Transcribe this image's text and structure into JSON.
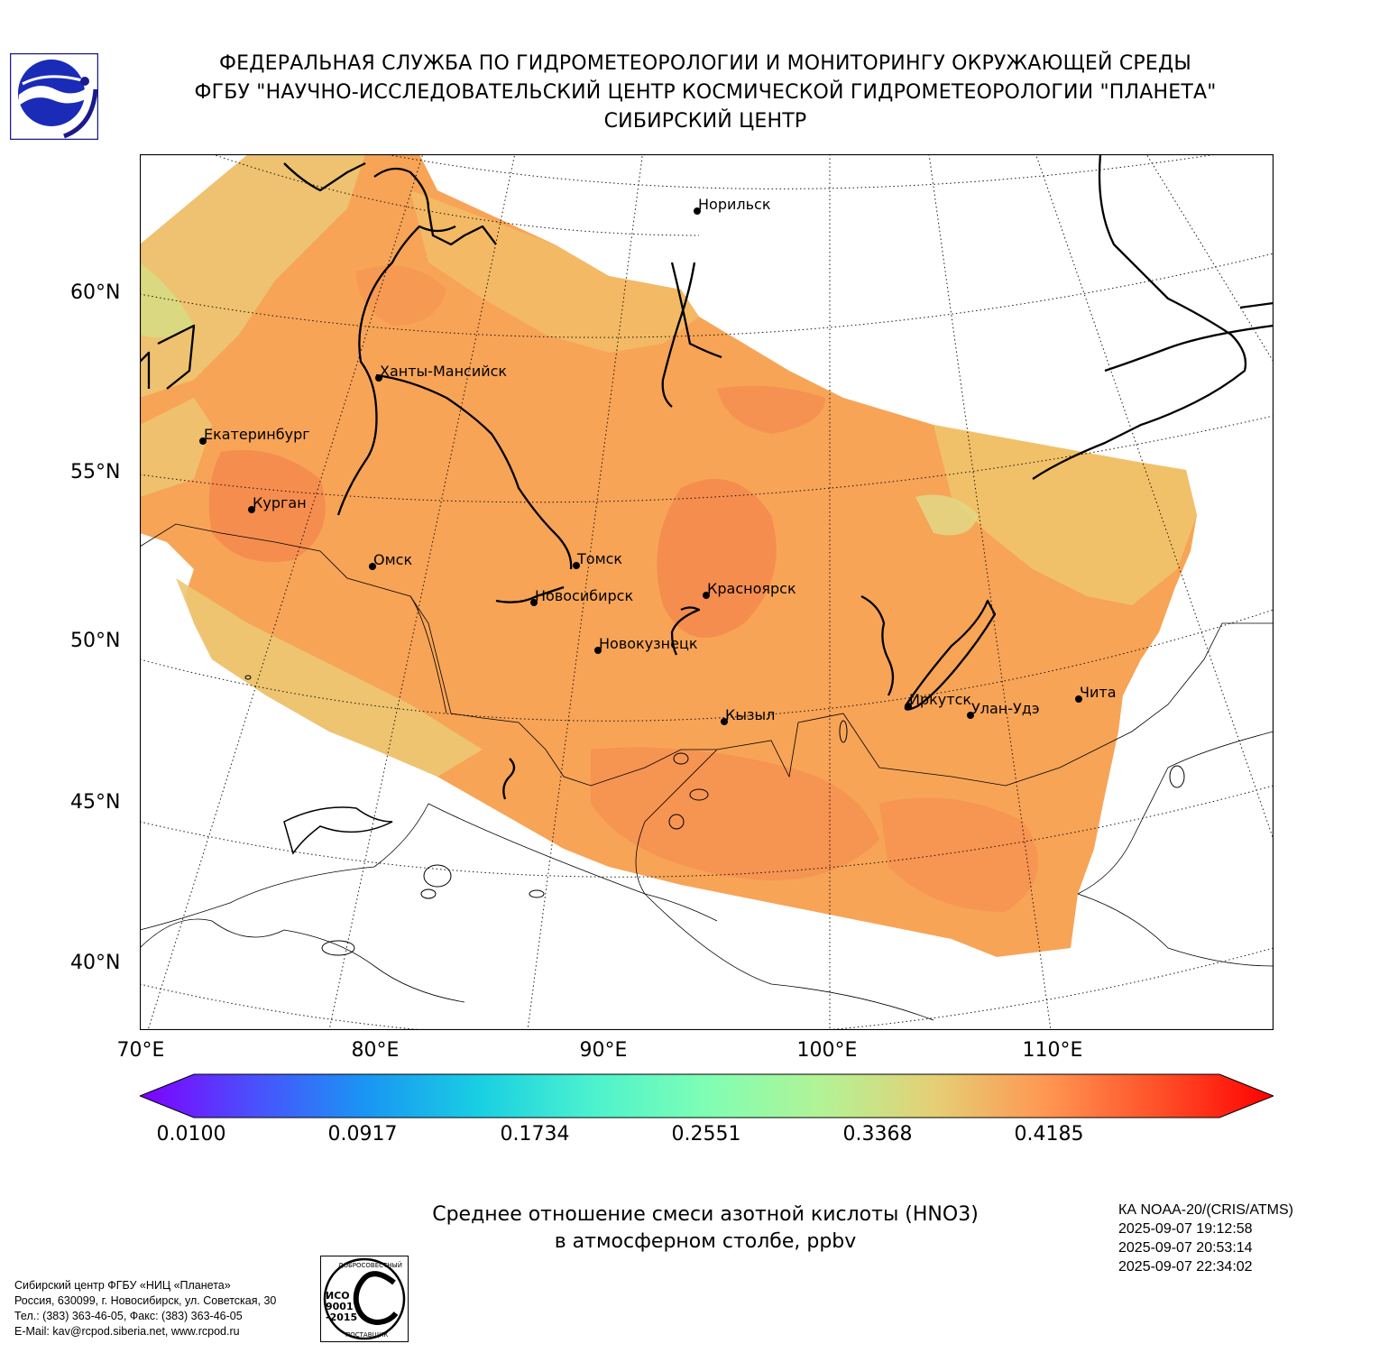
{
  "header": {
    "line1": "ФЕДЕРАЛЬНАЯ СЛУЖБА ПО ГИДРОМЕТЕОРОЛОГИИ И МОНИТОРИНГУ ОКРУЖАЮЩЕЙ СРЕДЫ",
    "line2": "ФГБУ \"НАУЧНО-ИССЛЕДОВАТЕЛЬСКИЙ ЦЕНТР КОСМИЧЕСКОЙ ГИДРОМЕТЕОРОЛОГИИ \"ПЛАНЕТА\"",
    "line3": "СИБИРСКИЙ ЦЕНТР"
  },
  "map": {
    "lat_labels": [
      "60°N",
      "55°N",
      "50°N",
      "45°N",
      "40°N"
    ],
    "lon_labels": [
      "70°E",
      "80°E",
      "90°E",
      "100°E",
      "110°E"
    ],
    "cities": [
      {
        "name": "Норильск"
      },
      {
        "name": "Ханты-Мансийск"
      },
      {
        "name": "Екатеринбург"
      },
      {
        "name": "Курган"
      },
      {
        "name": "Омск"
      },
      {
        "name": "Томск"
      },
      {
        "name": "Новосибирск"
      },
      {
        "name": "Красноярск"
      },
      {
        "name": "Новокузнецк"
      },
      {
        "name": "Кызыл"
      },
      {
        "name": "Иркутск"
      },
      {
        "name": "Улан-Удэ"
      },
      {
        "name": "Чита"
      }
    ],
    "colors": {
      "field_low": "#f2c46e",
      "field_mid": "#f7a457",
      "field_high": "#f48a4e",
      "field_edge": "#e9d78a",
      "coast": "#000000"
    }
  },
  "colorbar": {
    "ticks": [
      "0.0100",
      "0.0917",
      "0.1734",
      "0.2551",
      "0.3368",
      "0.4185"
    ],
    "min": 0.01,
    "max": 0.5002,
    "colors": [
      "#7f00ff",
      "#4b4ffd",
      "#1996f3",
      "#19cfe2",
      "#4cf2ce",
      "#7ffeb3",
      "#b2f396",
      "#e5cf75",
      "#ff9652",
      "#ff4f28",
      "#ff0000"
    ]
  },
  "caption": {
    "line1": "Среднее отношение смеси азотной кислоты (HNO3)",
    "line2": "в атмосферном столбе, ppbv"
  },
  "satellite": {
    "line1": "КА NOAA-20/(CRIS/ATMS)",
    "line2": "2025-09-07 19:12:58",
    "line3": "2025-09-07 20:53:14",
    "line4": "2025-09-07 22:34:02"
  },
  "organization": {
    "line1": "Сибирский центр ФГБУ «НИЦ «Планета»",
    "line2": "Россия, 630099, г. Новосибирск, ул. Советская, 30",
    "line3": "Тел.: (383) 363-46-05, Факс: (383) 363-46-05",
    "line4": "E-Mail: kav@rcpod.siberia.net, www.rcpod.ru"
  },
  "iso_stamp": {
    "top_text": "ДОБРОСОВЕСТНЫЙ",
    "line1": "ИСО",
    "line2": "9001",
    "line3": "-2015",
    "bottom_text": "ПОСТАВЩИК"
  }
}
